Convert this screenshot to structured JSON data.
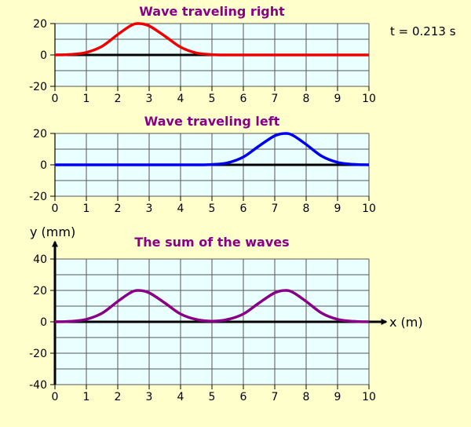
{
  "time_readout": "t = 0.213 s",
  "chart_data": [
    {
      "type": "line",
      "title": "Wave traveling right",
      "xlabel": "",
      "ylabel": "",
      "xlim": [
        0,
        10
      ],
      "ylim": [
        -20,
        20
      ],
      "x_ticks": [
        "0",
        "1",
        "2",
        "3",
        "4",
        "5",
        "6",
        "7",
        "8",
        "9",
        "10"
      ],
      "y_ticks": [
        "20",
        "0",
        "-20"
      ],
      "grid": true,
      "series": [
        {
          "color": "#ee0000",
          "points": [
            [
              0,
              0
            ],
            [
              0.5,
              0.3
            ],
            [
              1,
              1.6
            ],
            [
              1.5,
              5.5
            ],
            [
              2,
              13
            ],
            [
              2.4,
              18.5
            ],
            [
              2.65,
              20
            ],
            [
              3,
              18.5
            ],
            [
              3.5,
              12
            ],
            [
              4,
              5
            ],
            [
              4.5,
              1.3
            ],
            [
              5,
              0.2
            ],
            [
              5.5,
              0
            ],
            [
              6,
              0
            ],
            [
              7,
              0
            ],
            [
              8,
              0
            ],
            [
              9,
              0
            ],
            [
              10,
              0
            ]
          ]
        }
      ]
    },
    {
      "type": "line",
      "title": "Wave traveling left",
      "xlabel": "",
      "ylabel": "",
      "xlim": [
        0,
        10
      ],
      "ylim": [
        -20,
        20
      ],
      "x_ticks": [
        "0",
        "1",
        "2",
        "3",
        "4",
        "5",
        "6",
        "7",
        "8",
        "9",
        "10"
      ],
      "y_ticks": [
        "20",
        "0",
        "-20"
      ],
      "grid": true,
      "series": [
        {
          "color": "#0000ee",
          "points": [
            [
              0,
              0
            ],
            [
              1,
              0
            ],
            [
              2,
              0
            ],
            [
              3,
              0
            ],
            [
              4,
              0
            ],
            [
              4.5,
              0
            ],
            [
              5,
              0.2
            ],
            [
              5.5,
              1.3
            ],
            [
              6,
              5
            ],
            [
              6.5,
              12
            ],
            [
              7,
              18.5
            ],
            [
              7.35,
              20
            ],
            [
              7.6,
              18.5
            ],
            [
              8,
              13
            ],
            [
              8.5,
              5.5
            ],
            [
              9,
              1.6
            ],
            [
              9.5,
              0.3
            ],
            [
              10,
              0
            ]
          ]
        }
      ]
    },
    {
      "type": "line",
      "title": "The sum of the waves",
      "xlabel": "x (m)",
      "ylabel": "y (mm)",
      "xlim": [
        0,
        10
      ],
      "ylim": [
        -40,
        40
      ],
      "x_ticks": [
        "0",
        "1",
        "2",
        "3",
        "4",
        "5",
        "6",
        "7",
        "8",
        "9",
        "10"
      ],
      "y_ticks": [
        "40",
        "20",
        "0",
        "-20",
        "-40"
      ],
      "grid": true,
      "series": [
        {
          "color": "#880088",
          "points": [
            [
              0,
              0
            ],
            [
              0.5,
              0.3
            ],
            [
              1,
              1.6
            ],
            [
              1.5,
              5.5
            ],
            [
              2,
              13
            ],
            [
              2.4,
              18.5
            ],
            [
              2.65,
              20
            ],
            [
              3,
              18.5
            ],
            [
              3.5,
              12
            ],
            [
              4,
              5
            ],
            [
              4.5,
              1.5
            ],
            [
              5,
              0.4
            ],
            [
              5.5,
              1.5
            ],
            [
              6,
              5
            ],
            [
              6.5,
              12
            ],
            [
              7,
              18.5
            ],
            [
              7.35,
              20
            ],
            [
              7.6,
              18.5
            ],
            [
              8,
              13
            ],
            [
              8.5,
              5.5
            ],
            [
              9,
              1.6
            ],
            [
              9.5,
              0.3
            ],
            [
              10,
              0
            ]
          ]
        }
      ]
    }
  ]
}
